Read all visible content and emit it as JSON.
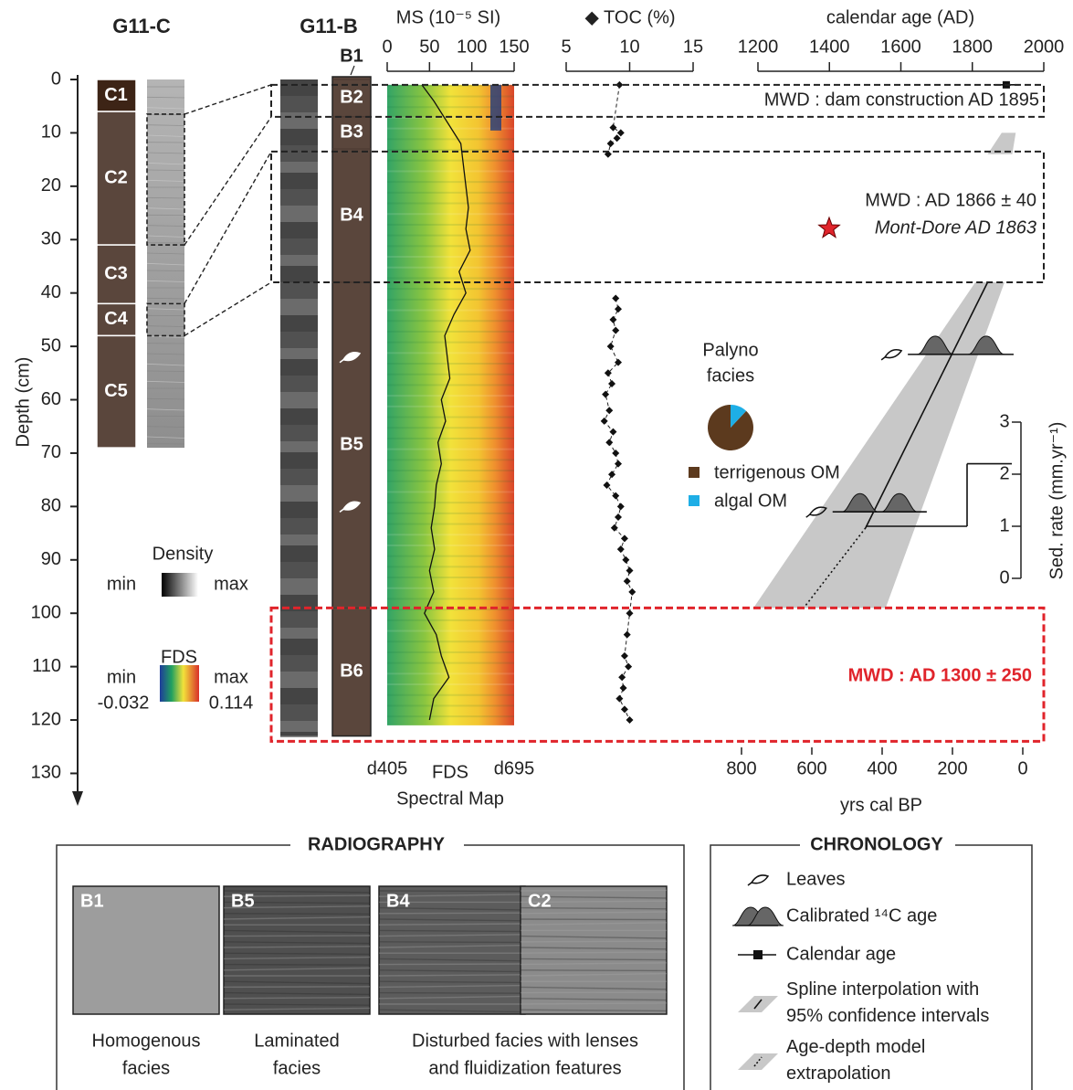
{
  "depth_axis": {
    "label": "Depth (cm)",
    "ticks": [
      0,
      10,
      20,
      30,
      40,
      50,
      60,
      70,
      80,
      90,
      100,
      110,
      120,
      130
    ]
  },
  "g11c": {
    "title": "G11-C",
    "units": [
      {
        "label": "C1",
        "top": 0,
        "bottom": 6,
        "color": "#3d2416"
      },
      {
        "label": "C2",
        "top": 6,
        "bottom": 31,
        "color": "#5a463c"
      },
      {
        "label": "C3",
        "top": 31,
        "bottom": 42,
        "color": "#5a463c"
      },
      {
        "label": "C4",
        "top": 42,
        "bottom": 48,
        "color": "#5a463c"
      },
      {
        "label": "C5",
        "top": 48,
        "bottom": 69,
        "color": "#5a463c"
      }
    ]
  },
  "g11b": {
    "title": "G11-B",
    "top_label": "B1",
    "color": "#5a463c",
    "units": [
      {
        "label": "B2",
        "top": 0,
        "bottom": 7
      },
      {
        "label": "B3",
        "top": 7,
        "bottom": 13
      },
      {
        "label": "B4",
        "top": 13,
        "bottom": 38
      },
      {
        "label": "B5",
        "top": 38,
        "bottom": 99
      },
      {
        "label": "B6",
        "top": 99,
        "bottom": 123
      }
    ],
    "leaves": [
      52,
      80
    ]
  },
  "correlations": [
    {
      "c": [
        6.5,
        31
      ],
      "b": [
        1,
        7
      ]
    },
    {
      "c": [
        42,
        48
      ],
      "b": [
        13.5,
        38
      ]
    }
  ],
  "ms": {
    "label": "MS (10⁻⁵ SI)",
    "lim": [
      0,
      150
    ],
    "ticks": [
      0,
      50,
      100,
      150
    ],
    "depths": [
      1,
      4,
      8,
      12,
      16,
      20,
      24,
      28,
      32,
      36,
      40,
      44,
      48,
      52,
      56,
      60,
      64,
      68,
      72,
      76,
      80,
      84,
      88,
      92,
      96,
      100,
      104,
      108,
      112,
      116,
      120
    ],
    "values": [
      41,
      55,
      71,
      87,
      90,
      93,
      96,
      93,
      98,
      85,
      93,
      79,
      68,
      71,
      74,
      64,
      69,
      60,
      64,
      58,
      56,
      52,
      56,
      50,
      55,
      44,
      58,
      64,
      73,
      55,
      50
    ]
  },
  "spectral_map": {
    "top": 1,
    "bottom": 121,
    "left_label": "d405",
    "center_label": "FDS",
    "right_label": "d695",
    "title": "Spectral Map"
  },
  "toc": {
    "label": "◆ TOC (%)",
    "lim": [
      5,
      15
    ],
    "ticks": [
      5,
      10,
      15
    ],
    "depths": [
      1,
      9,
      10,
      11,
      12,
      14,
      41,
      43,
      45,
      47,
      50,
      53,
      55,
      57,
      59,
      62,
      64,
      66,
      68,
      70,
      72,
      74,
      76,
      78,
      80,
      82,
      84,
      86,
      88,
      90,
      92,
      94,
      96,
      100,
      104,
      108,
      110,
      112,
      114,
      116,
      118,
      120
    ],
    "values": [
      9.2,
      8.7,
      9.3,
      9.0,
      8.5,
      8.3,
      8.9,
      9.1,
      8.7,
      8.9,
      8.5,
      9.1,
      8.3,
      8.6,
      8.1,
      8.4,
      8.0,
      8.7,
      8.4,
      8.9,
      9.1,
      8.6,
      8.2,
      8.9,
      9.3,
      9.1,
      8.8,
      9.6,
      9.3,
      9.7,
      10.0,
      9.8,
      10.2,
      10.0,
      9.8,
      9.6,
      9.9,
      9.4,
      9.5,
      9.2,
      9.6,
      10.0
    ]
  },
  "calendar_axis": {
    "label": "calendar age (AD)",
    "lim": [
      1200,
      2000
    ],
    "ticks": [
      1200,
      1400,
      1600,
      1800,
      2000
    ],
    "calendar_age": {
      "depth": 1,
      "year": 1895
    }
  },
  "bp_axis": {
    "label": "yrs cal BP",
    "lim": [
      0,
      800
    ],
    "ticks": [
      800,
      600,
      400,
      200,
      0
    ]
  },
  "age_model": {
    "bands": [
      {
        "depths": [
          10,
          14
        ],
        "young": [
          20,
          30
        ],
        "old": [
          60,
          100
        ]
      },
      {
        "depths": [
          38,
          99
        ],
        "young": [
          52,
          390
        ],
        "old": [
          135,
          766
        ]
      }
    ],
    "spline": {
      "depths": [
        38,
        84
      ],
      "bp": [
        100,
        447
      ]
    },
    "extrapolation": {
      "depths": [
        84,
        99
      ],
      "bp": [
        447,
        623
      ]
    },
    "calibrated_dates": [
      {
        "depth": 51.5,
        "peaks": [
          249,
          104
        ]
      },
      {
        "depth": 81,
        "peaks": [
          463,
          351
        ]
      }
    ]
  },
  "sed_rate": {
    "label": "Sed. rate (mm.yr⁻¹)",
    "lim": [
      0,
      3
    ],
    "ticks": [
      0,
      1,
      2,
      3
    ],
    "values": [
      1,
      2.2
    ]
  },
  "mwd": [
    {
      "label": "MWD : dam construction AD 1895",
      "top": 1,
      "bottom": 7,
      "color": "#222222"
    },
    {
      "label": "MWD : AD 1866 ± 40",
      "note": "Mont-Dore AD 1863",
      "top": 13.5,
      "bottom": 38,
      "color": "#222222"
    },
    {
      "label": "MWD : AD 1300 ± 250",
      "top": 99,
      "bottom": 124,
      "color": "#e0242b"
    }
  ],
  "palyno": {
    "title": [
      "Palyno",
      "facies"
    ],
    "slices": [
      {
        "name": "terrigenous OM",
        "value": 88,
        "color": "#5c3a1e"
      },
      {
        "name": "algal OM",
        "value": 12,
        "color": "#1eaee6"
      }
    ]
  },
  "density_legend": {
    "title": "Density",
    "min": "min",
    "max": "max"
  },
  "fds_legend": {
    "title": "FDS",
    "min": "min",
    "max": "max",
    "min_value": -0.032,
    "max_value": 0.114
  },
  "radiography": {
    "title": "RADIOGRAPHY",
    "panels": [
      "B1",
      "B5",
      "B4",
      "C2"
    ],
    "captions": [
      [
        "Homogenous",
        "facies"
      ],
      [
        "Laminated",
        "facies"
      ],
      [
        "Disturbed facies with lenses",
        "and fluidization features"
      ]
    ]
  },
  "chronology": {
    "title": "CHRONOLOGY",
    "items": [
      [
        "Leaves"
      ],
      [
        "Calibrated ¹⁴C age"
      ],
      [
        "Calendar age"
      ],
      [
        "Spline interpolation with",
        "95% confidence intervals"
      ],
      [
        "Age-depth model",
        "extrapolation"
      ]
    ]
  }
}
